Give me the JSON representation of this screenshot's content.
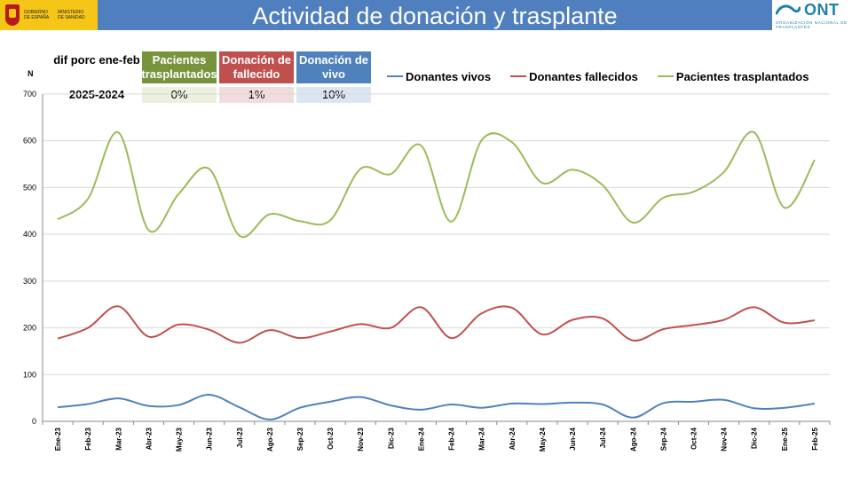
{
  "header": {
    "title": "Actividad de donación y trasplante",
    "gov_logo_text_left": "Gobierno de España",
    "gov_logo_text_right": "Ministerio de Sanidad",
    "ont_logo_text": "ONT",
    "ont_logo_subtitle": "Organización Nacional de Trasplantes",
    "bar_color": "#4f7fbe"
  },
  "summary_table": {
    "label": "dif porc ene-feb",
    "period": "2025-2024",
    "columns": [
      {
        "header": "Pacientes trasplantados",
        "value": "0%",
        "header_color": "#77933c",
        "value_color": "#ebf1de"
      },
      {
        "header": "Donación de fallecido",
        "value": "1%",
        "header_color": "#c0504d",
        "value_color": "#f2dcdb"
      },
      {
        "header": "Donación de vivo",
        "value": "10%",
        "header_color": "#4f81bd",
        "value_color": "#dce6f2"
      }
    ]
  },
  "chart_data": {
    "type": "line",
    "ylabel": "N",
    "ylim": [
      0,
      700
    ],
    "yticks": [
      0,
      100,
      200,
      300,
      400,
      500,
      600,
      700
    ],
    "grid": true,
    "legend_position": "top",
    "categories": [
      "Ene-23",
      "Feb-23",
      "Mar-23",
      "Abr-23",
      "May-23",
      "Jun-23",
      "Jul-23",
      "Ago-23",
      "Sep-23",
      "Oct-23",
      "Nov-23",
      "Dic-23",
      "Ene-24",
      "Feb-24",
      "Mar-24",
      "Abr-24",
      "May-24",
      "Jun-24",
      "Jul-24",
      "Ago-24",
      "Sep-24",
      "Oct-24",
      "Nov-24",
      "Dic-24",
      "Ene-25",
      "Feb-25"
    ],
    "series": [
      {
        "name": "Donantes vivos",
        "color": "#4f81bd",
        "values": [
          30,
          37,
          49,
          33,
          35,
          57,
          30,
          4,
          29,
          42,
          52,
          34,
          25,
          36,
          29,
          38,
          37,
          40,
          36,
          8,
          39,
          42,
          46,
          28,
          29,
          38
        ]
      },
      {
        "name": "Donantes fallecidos",
        "color": "#c0504d",
        "values": [
          177,
          200,
          246,
          181,
          207,
          196,
          168,
          195,
          178,
          192,
          208,
          200,
          244,
          178,
          231,
          243,
          186,
          217,
          220,
          173,
          197,
          206,
          217,
          244,
          211,
          216
        ]
      },
      {
        "name": "Pacientes trasplantados",
        "color": "#9bbb59",
        "values": [
          432,
          476,
          618,
          409,
          487,
          540,
          397,
          443,
          428,
          430,
          540,
          529,
          590,
          427,
          601,
          597,
          510,
          538,
          505,
          425,
          478,
          491,
          533,
          618,
          457,
          559
        ]
      }
    ]
  }
}
